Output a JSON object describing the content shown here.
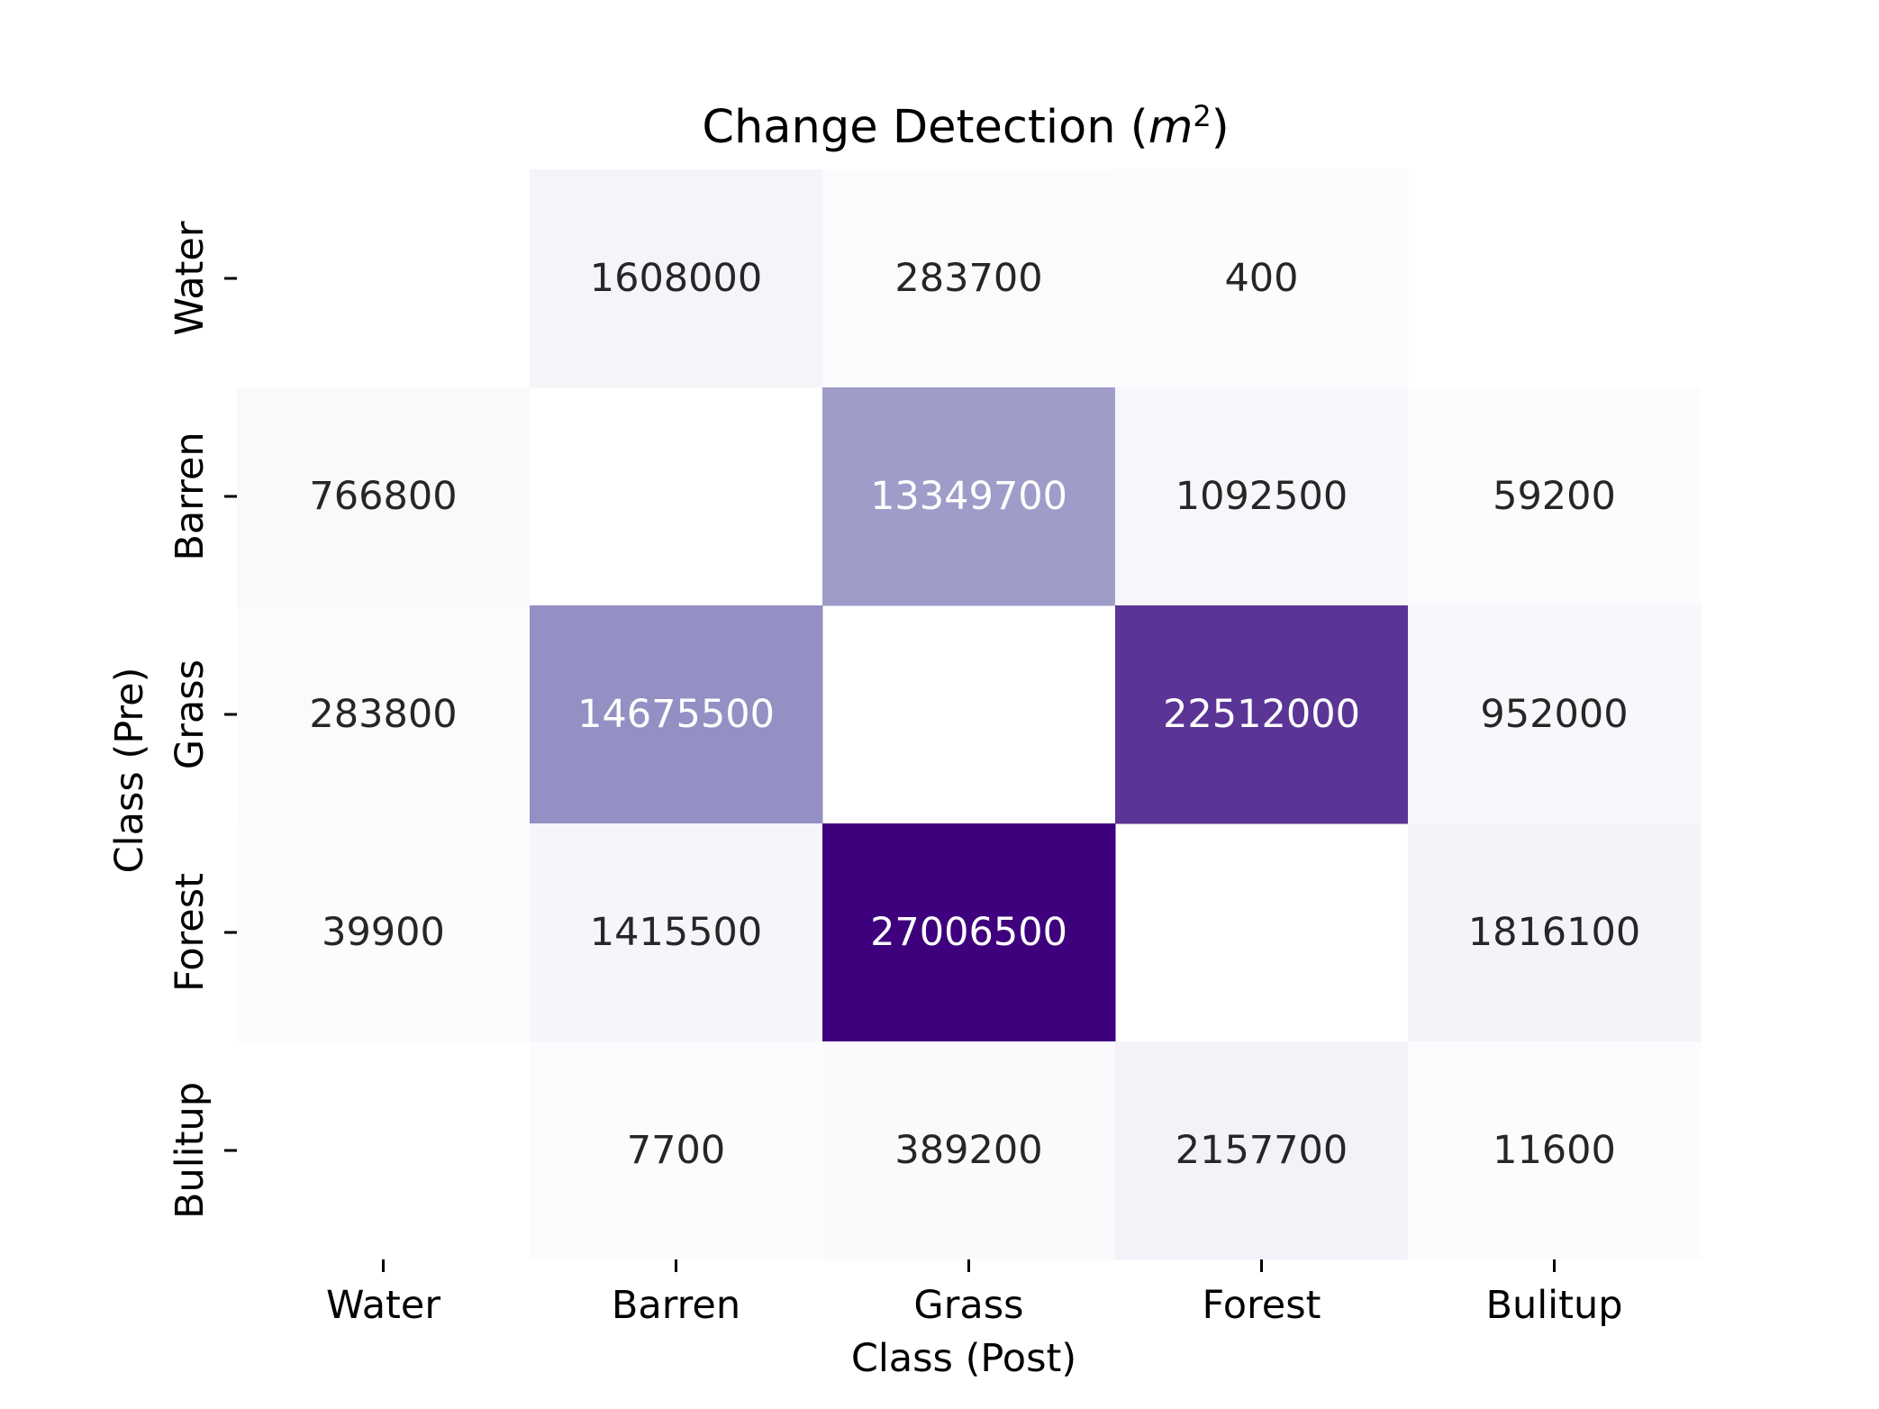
{
  "chart_data": {
    "type": "heatmap",
    "title": "Change Detection (m²)",
    "title_prefix": "Change Detection (",
    "title_var": "m",
    "title_sup": "2",
    "title_suffix": ")",
    "xlabel": "Class (Post)",
    "ylabel": "Class (Pre)",
    "x_categories": [
      "Water",
      "Barren",
      "Grass",
      "Forest",
      "Bulitup"
    ],
    "y_categories": [
      "Water",
      "Barren",
      "Grass",
      "Forest",
      "Bulitup"
    ],
    "values": [
      [
        null,
        1608000,
        283700,
        400,
        null
      ],
      [
        766800,
        null,
        13349700,
        1092500,
        59200
      ],
      [
        283800,
        14675500,
        null,
        22512000,
        952000
      ],
      [
        39900,
        1415500,
        27006500,
        null,
        1816100
      ],
      [
        null,
        7700,
        389200,
        2157700,
        11600
      ]
    ],
    "colormap": "Purples",
    "colorbar": false,
    "grid": false
  }
}
